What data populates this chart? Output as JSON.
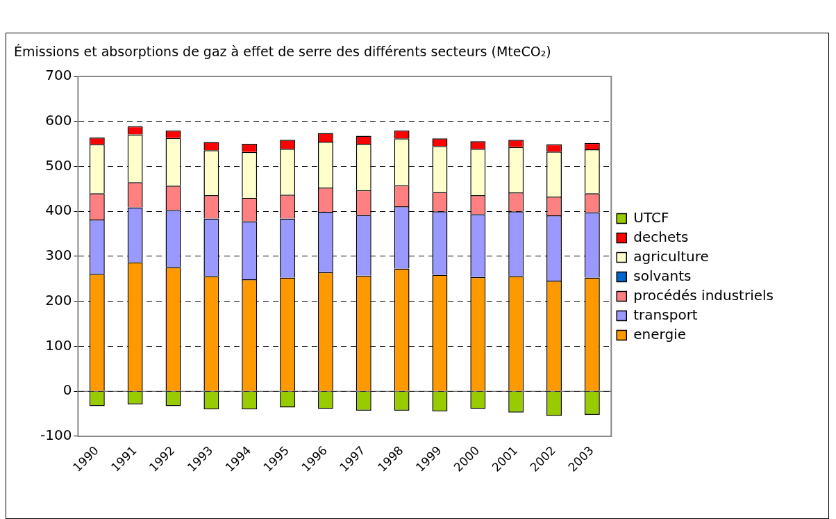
{
  "chart_data": {
    "type": "bar",
    "title": "Émissions et absorptions de gaz à effet de serre des différents secteurs (MteCO₂)",
    "categories": [
      "1990",
      "1991",
      "1992",
      "1993",
      "1994",
      "1995",
      "1996",
      "1997",
      "1998",
      "1999",
      "2000",
      "2001",
      "2002",
      "2003"
    ],
    "series": [
      {
        "name": "energie",
        "color": "#ff9900",
        "values": [
          261,
          287,
          276,
          256,
          249,
          253,
          265,
          257,
          273,
          259,
          254,
          256,
          246,
          253
        ]
      },
      {
        "name": "transport",
        "color": "#9999ff",
        "values": [
          121,
          122,
          127,
          128,
          129,
          131,
          134,
          135,
          138,
          141,
          140,
          144,
          145,
          145
        ]
      },
      {
        "name": "procédés industriels",
        "color": "#ff8080",
        "values": [
          58,
          56,
          54,
          52,
          52,
          53,
          54,
          55,
          47,
          43,
          42,
          42,
          42,
          42
        ]
      },
      {
        "name": "solvants",
        "color": "#0066cc",
        "values": [
          0,
          0,
          0,
          0,
          0,
          0,
          0,
          0,
          0,
          0,
          0,
          0,
          0,
          0
        ]
      },
      {
        "name": "agriculture",
        "color": "#ffffcc",
        "values": [
          109,
          106,
          106,
          100,
          102,
          102,
          102,
          103,
          104,
          102,
          103,
          101,
          100,
          98
        ]
      },
      {
        "name": "dechets",
        "color": "#ff0000",
        "values": [
          15,
          18,
          17,
          18,
          18,
          20,
          19,
          18,
          18,
          17,
          17,
          16,
          16,
          14
        ]
      },
      {
        "name": "UTCF",
        "color": "#99cc00",
        "values": [
          -33,
          -29,
          -33,
          -40,
          -40,
          -36,
          -39,
          -43,
          -43,
          -45,
          -39,
          -47,
          -55,
          -52
        ]
      }
    ],
    "stacked": true,
    "ylim": [
      -100,
      700
    ],
    "yticks": [
      -100,
      0,
      100,
      200,
      300,
      400,
      500,
      600,
      700
    ],
    "grid": "y",
    "legend": "right"
  }
}
